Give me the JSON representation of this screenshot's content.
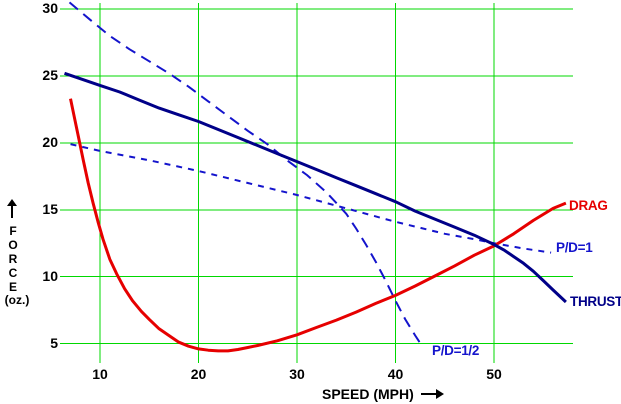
{
  "chart_data": {
    "type": "line",
    "title": "",
    "xlabel": "SPEED (MPH)",
    "ylabel": "FORCE (oz.)",
    "x_ticks": [
      10,
      20,
      30,
      40,
      50
    ],
    "y_ticks": [
      5,
      10,
      15,
      20,
      25,
      30
    ],
    "xlim": [
      6,
      58
    ],
    "ylim": [
      3.5,
      31
    ],
    "grid": true,
    "grid_color": "#00d800",
    "background": "#ffffff",
    "legend_position": "inline-right",
    "series": [
      {
        "name": "pd-half",
        "label": "P/D=1/2",
        "color": "#1414cc",
        "style": "long-dashed",
        "dash": "11,7",
        "width": 2,
        "points": [
          [
            6.9,
            30.5
          ],
          [
            9,
            29.2
          ],
          [
            11,
            28.0
          ],
          [
            13,
            27.0
          ],
          [
            15,
            26.1
          ],
          [
            17,
            25.2
          ],
          [
            19,
            24.2
          ],
          [
            21,
            23.1
          ],
          [
            23,
            22.0
          ],
          [
            25,
            20.9
          ],
          [
            27,
            19.9
          ],
          [
            29,
            18.7
          ],
          [
            31,
            17.6
          ],
          [
            33,
            16.3
          ],
          [
            35,
            14.7
          ],
          [
            36,
            13.6
          ],
          [
            37,
            12.4
          ],
          [
            38,
            11.1
          ],
          [
            39,
            9.7
          ],
          [
            40,
            8.2
          ],
          [
            41,
            6.8
          ],
          [
            42,
            5.6
          ],
          [
            42.8,
            4.7
          ]
        ]
      },
      {
        "name": "pd-1",
        "label": "P/D=1",
        "color": "#1414cc",
        "style": "dashed",
        "dash": "6,6",
        "width": 2,
        "points": [
          [
            7,
            19.9
          ],
          [
            10,
            19.4
          ],
          [
            15,
            18.7
          ],
          [
            20,
            17.9
          ],
          [
            25,
            17.0
          ],
          [
            30,
            16.1
          ],
          [
            35,
            15.1
          ],
          [
            40,
            14.1
          ],
          [
            45,
            13.2
          ],
          [
            48,
            12.8
          ],
          [
            50,
            12.5
          ],
          [
            53,
            12.1
          ],
          [
            55.8,
            11.8
          ]
        ]
      },
      {
        "name": "drag",
        "label": "DRAG",
        "color": "#e60000",
        "style": "solid",
        "dash": null,
        "width": 3,
        "points": [
          [
            7,
            23.3
          ],
          [
            7.4,
            21.9
          ],
          [
            7.8,
            20.5
          ],
          [
            8.3,
            18.7
          ],
          [
            8.8,
            17.0
          ],
          [
            9.3,
            15.5
          ],
          [
            9.8,
            14.1
          ],
          [
            10.3,
            12.8
          ],
          [
            11,
            11.3
          ],
          [
            11.7,
            10.2
          ],
          [
            12.5,
            9.1
          ],
          [
            13.3,
            8.2
          ],
          [
            14.2,
            7.4
          ],
          [
            15,
            6.8
          ],
          [
            16,
            6.1
          ],
          [
            17,
            5.6
          ],
          [
            18,
            5.1
          ],
          [
            19,
            4.8
          ],
          [
            20,
            4.6
          ],
          [
            21,
            4.5
          ],
          [
            22,
            4.45
          ],
          [
            23,
            4.45
          ],
          [
            24,
            4.55
          ],
          [
            25,
            4.7
          ],
          [
            26,
            4.85
          ],
          [
            28,
            5.2
          ],
          [
            30,
            5.65
          ],
          [
            32,
            6.2
          ],
          [
            34,
            6.75
          ],
          [
            36,
            7.35
          ],
          [
            38,
            8.0
          ],
          [
            40,
            8.6
          ],
          [
            42,
            9.3
          ],
          [
            44,
            10.05
          ],
          [
            46,
            10.8
          ],
          [
            48,
            11.6
          ],
          [
            50,
            12.3
          ],
          [
            52,
            13.2
          ],
          [
            54,
            14.2
          ],
          [
            56,
            15.1
          ],
          [
            57.3,
            15.5
          ]
        ]
      },
      {
        "name": "thrust",
        "label": "THRUST",
        "color": "#000088",
        "style": "solid",
        "dash": null,
        "width": 3,
        "points": [
          [
            6.4,
            25.2
          ],
          [
            8,
            24.8
          ],
          [
            10,
            24.3
          ],
          [
            12,
            23.8
          ],
          [
            14,
            23.2
          ],
          [
            16,
            22.6
          ],
          [
            18,
            22.1
          ],
          [
            20,
            21.6
          ],
          [
            22,
            21.0
          ],
          [
            24,
            20.4
          ],
          [
            26,
            19.8
          ],
          [
            28,
            19.2
          ],
          [
            30,
            18.6
          ],
          [
            32,
            18.0
          ],
          [
            34,
            17.4
          ],
          [
            36,
            16.8
          ],
          [
            38,
            16.2
          ],
          [
            40,
            15.6
          ],
          [
            42,
            14.9
          ],
          [
            44,
            14.3
          ],
          [
            46,
            13.7
          ],
          [
            48,
            13.1
          ],
          [
            50,
            12.4
          ],
          [
            51,
            12.0
          ],
          [
            52,
            11.5
          ],
          [
            53,
            11.0
          ],
          [
            54,
            10.4
          ],
          [
            55,
            9.7
          ],
          [
            56,
            9.0
          ],
          [
            57.3,
            8.1
          ]
        ]
      }
    ]
  },
  "y_axis": {
    "title_letters": [
      "F",
      "O",
      "R",
      "C",
      "E"
    ],
    "unit": "(oz.)",
    "arrow": "up"
  },
  "x_axis": {
    "label": "SPEED (MPH)",
    "arrow": "right"
  }
}
